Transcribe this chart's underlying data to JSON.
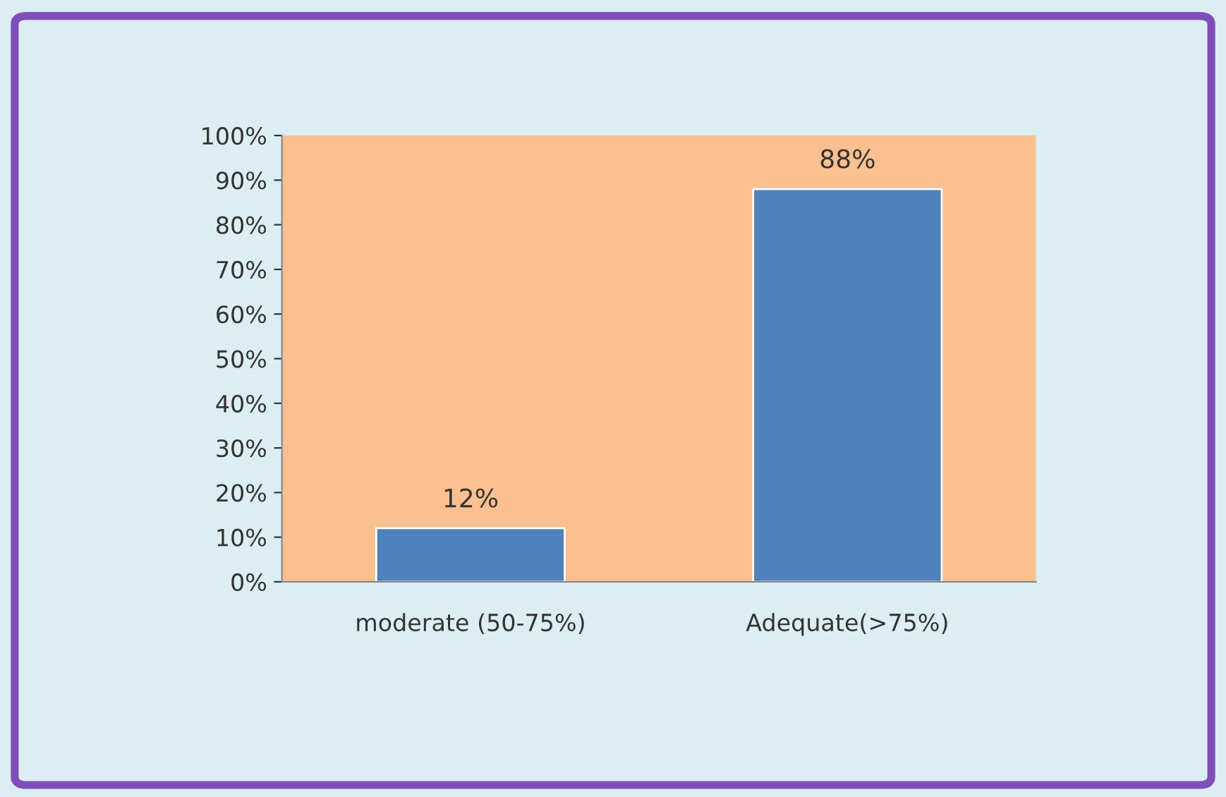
{
  "chart_data": {
    "type": "bar",
    "categories": [
      "moderate (50-75%)",
      "Adequate(>75%)"
    ],
    "values": [
      12,
      88
    ],
    "color": "#4f81bd",
    "value_labels": [
      "12%",
      "88%"
    ],
    "ylim": [
      0,
      100
    ],
    "yticks": [
      {
        "value": 0,
        "label": "0%"
      },
      {
        "value": 10,
        "label": "10%"
      },
      {
        "value": 20,
        "label": "20%"
      },
      {
        "value": 30,
        "label": "30%"
      },
      {
        "value": 40,
        "label": "40%"
      },
      {
        "value": 50,
        "label": "50%"
      },
      {
        "value": 60,
        "label": "60%"
      },
      {
        "value": 70,
        "label": "70%"
      },
      {
        "value": 80,
        "label": "80%"
      },
      {
        "value": 90,
        "label": "90%"
      },
      {
        "value": 100,
        "label": "100%"
      }
    ],
    "grid": false,
    "legend": false
  }
}
